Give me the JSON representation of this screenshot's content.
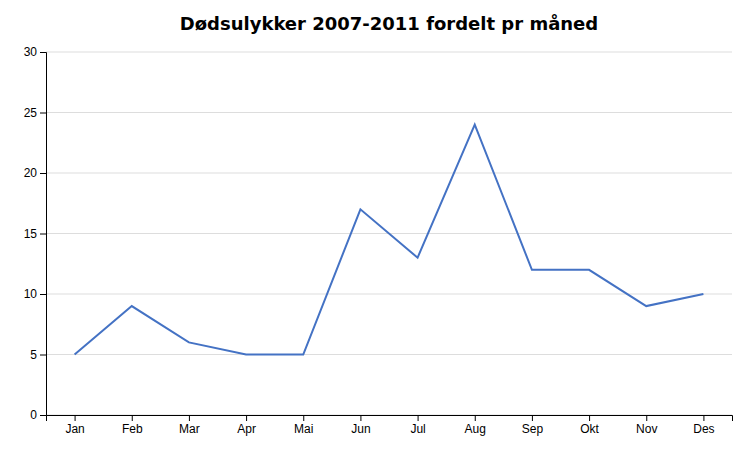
{
  "chart_data": {
    "type": "line",
    "title": "Dødsulykker 2007-2011 fordelt pr måned",
    "categories": [
      "Jan",
      "Feb",
      "Mar",
      "Apr",
      "Mai",
      "Jun",
      "Jul",
      "Aug",
      "Sep",
      "Okt",
      "Nov",
      "Des"
    ],
    "values": [
      5,
      9,
      6,
      5,
      5,
      17,
      13,
      24,
      12,
      12,
      9,
      10
    ],
    "color": "#4472C4",
    "ylim": [
      0,
      30
    ],
    "yticks": [
      0,
      5,
      10,
      15,
      20,
      25,
      30
    ],
    "grid": true
  }
}
